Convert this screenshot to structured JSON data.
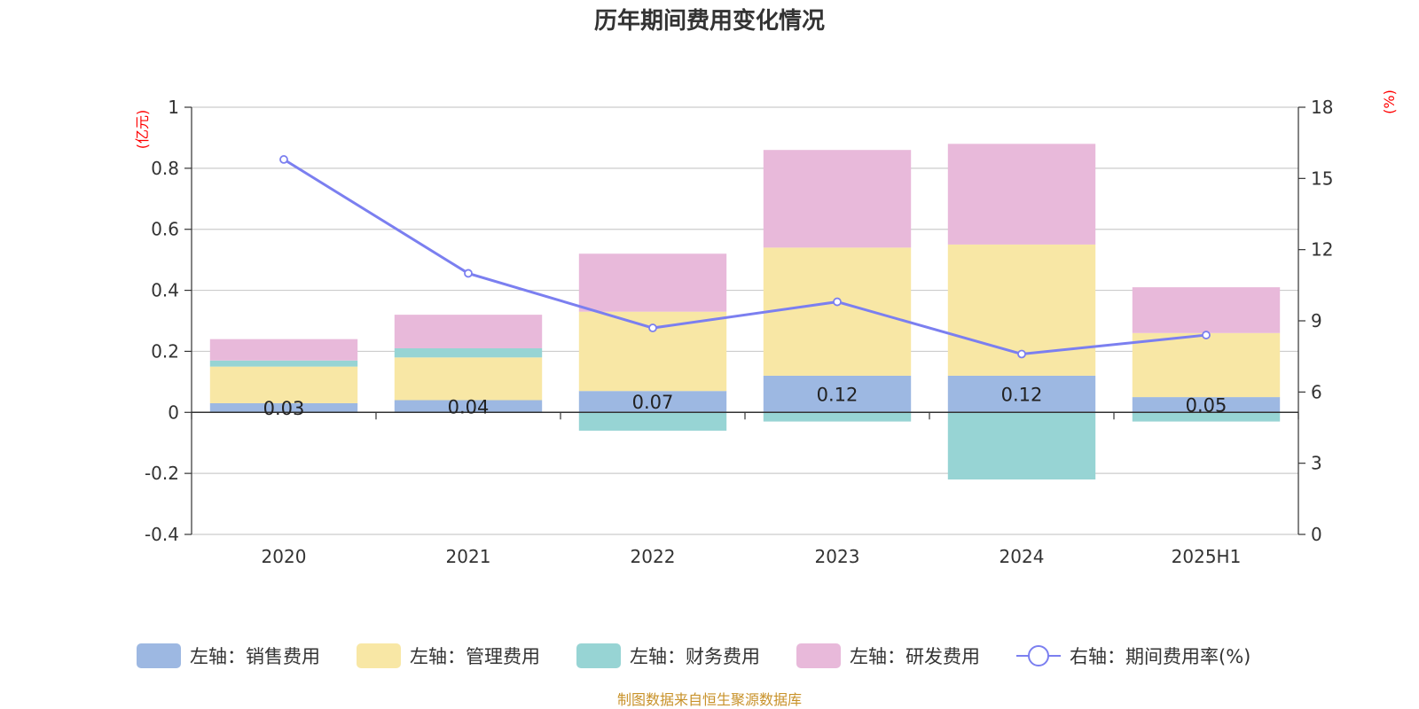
{
  "chart_data": {
    "type": "bar",
    "stacked": true,
    "title": "历年期间费用变化情况",
    "categories": [
      "2020",
      "2021",
      "2022",
      "2023",
      "2024",
      "2025H1"
    ],
    "left_axis": {
      "unit": "(亿元)",
      "ylim": [
        -0.4,
        1
      ],
      "ticks": [
        "1",
        "0.8",
        "0.6",
        "0.4",
        "0.2",
        "0",
        "-0.2",
        "-0.4"
      ],
      "tick_values": [
        1,
        0.8,
        0.6,
        0.4,
        0.2,
        0,
        -0.2,
        -0.4
      ]
    },
    "right_axis": {
      "unit": "(%)",
      "ylim": [
        0,
        18
      ],
      "ticks": [
        "18",
        "15",
        "12",
        "9",
        "6",
        "3",
        "0"
      ],
      "tick_values": [
        18,
        15,
        12,
        9,
        6,
        3,
        0
      ]
    },
    "grid": true,
    "series": [
      {
        "name": "左轴：销售费用",
        "axis": "left",
        "color": "#9db8e2",
        "values": [
          0.03,
          0.04,
          0.07,
          0.12,
          0.12,
          0.05
        ],
        "labels": [
          "0.03",
          "0.04",
          "0.07",
          "0.12",
          "0.12",
          "0.05"
        ]
      },
      {
        "name": "左轴：管理费用",
        "axis": "left",
        "color": "#f8e7a5",
        "values": [
          0.12,
          0.14,
          0.26,
          0.42,
          0.43,
          0.21
        ]
      },
      {
        "name": "左轴：财务费用",
        "axis": "left",
        "color": "#97d4d4",
        "values": [
          0.02,
          0.03,
          -0.06,
          -0.03,
          -0.22,
          -0.03
        ]
      },
      {
        "name": "左轴：研发费用",
        "axis": "left",
        "color": "#e8b9da",
        "values": [
          0.07,
          0.11,
          0.19,
          0.32,
          0.33,
          0.15
        ]
      },
      {
        "name": "右轴：期间费用率(%)",
        "axis": "right",
        "type": "line",
        "color": "#7b7ff0",
        "values": [
          15.8,
          11.0,
          8.7,
          9.8,
          7.6,
          8.4
        ]
      }
    ],
    "legend_position": "bottom"
  },
  "source_text": "制图数据来自恒生聚源数据库"
}
